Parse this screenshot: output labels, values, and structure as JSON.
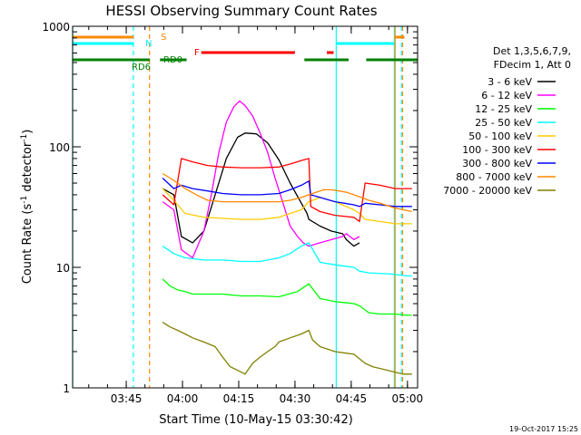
{
  "chart_data": {
    "type": "line",
    "title": "HESSI Observing Summary Count Rates",
    "xlabel": "Start Time (10-May-15 03:30:42)",
    "ylabel_main": "Count Rate (s",
    "ylabel_sup1": "-1",
    "ylabel_mid": " detector",
    "ylabel_sup2": "-1",
    "ylabel_end": ")",
    "yscale": "log",
    "ylim": [
      1,
      1000
    ],
    "xlim_minutes": [
      0,
      92
    ],
    "x_tick_labels": [
      {
        "t": 14.3,
        "label": "03:45"
      },
      {
        "t": 29.3,
        "label": "04:00"
      },
      {
        "t": 44.3,
        "label": "04:15"
      },
      {
        "t": 59.3,
        "label": "04:30"
      },
      {
        "t": 74.3,
        "label": "04:45"
      },
      {
        "t": 89.3,
        "label": "05:00"
      }
    ],
    "y_tick_labels": [
      {
        "v": 1,
        "label": "1"
      },
      {
        "v": 10,
        "label": "10"
      },
      {
        "v": 100,
        "label": "100"
      },
      {
        "v": 1000,
        "label": "1000"
      }
    ],
    "legend_header": [
      "Det 1,3,5,6,7,9,",
      "FDecim 1, Att 0"
    ],
    "series": [
      {
        "name": "3 - 6 keV",
        "color": "#000000",
        "x": [
          24,
          27,
          29,
          32,
          35,
          38,
          41,
          44,
          46,
          49,
          52,
          55,
          58,
          61,
          62.5,
          63,
          66,
          69,
          72,
          73,
          75,
          76.5
        ],
        "values": [
          45,
          40,
          18,
          16,
          20,
          40,
          80,
          120,
          130,
          128,
          108,
          78,
          50,
          34,
          28,
          25,
          22,
          20,
          19,
          17,
          15,
          16
        ]
      },
      {
        "name": "6 - 12 keV",
        "color": "#ff00ff",
        "x": [
          24,
          27,
          29,
          32,
          35,
          37,
          39,
          41,
          43,
          44.5,
          46,
          48,
          50,
          52,
          54,
          56,
          58,
          60,
          61.5,
          63,
          66,
          69,
          72,
          73,
          75,
          76.5
        ],
        "values": [
          35,
          30,
          14,
          12,
          20,
          40,
          90,
          160,
          215,
          240,
          220,
          180,
          130,
          90,
          55,
          35,
          22,
          18,
          16,
          15,
          16,
          17,
          18,
          19,
          17,
          18
        ]
      },
      {
        "name": "12 - 25 keV",
        "color": "#00ff00",
        "x": [
          24,
          26,
          28,
          30,
          32,
          35,
          40,
          45,
          50,
          55,
          60,
          63,
          66,
          70,
          75,
          76.5,
          79,
          82,
          86,
          89,
          90.5
        ],
        "values": [
          8,
          7,
          6.5,
          6.3,
          6,
          6,
          6,
          5.8,
          5.8,
          5.7,
          6.3,
          7.3,
          5.5,
          5.2,
          5,
          4.8,
          4.2,
          4.1,
          4.1,
          4,
          4
        ]
      },
      {
        "name": "25 - 50 keV",
        "color": "#00ffff",
        "x": [
          24,
          27,
          30,
          35,
          40,
          45,
          50,
          55,
          58,
          61,
          63,
          66,
          70,
          75,
          76.5,
          79,
          85,
          89,
          90.5
        ],
        "values": [
          15,
          13,
          12,
          11.5,
          11.5,
          11.2,
          11.2,
          12,
          13,
          15,
          16,
          11,
          10.5,
          10,
          9.3,
          9,
          8.8,
          8.5,
          8.5
        ]
      },
      {
        "name": "50 - 100 keV",
        "color": "#ffcc00",
        "x": [
          24,
          27,
          30,
          35,
          40,
          45,
          50,
          55,
          58,
          61,
          63,
          66,
          70,
          75,
          76.5,
          78,
          82,
          86,
          90.5
        ],
        "values": [
          45,
          36,
          28,
          26,
          25.5,
          25,
          25,
          26,
          28,
          30,
          35,
          38,
          35,
          30,
          28,
          25,
          24,
          23,
          23
        ]
      },
      {
        "name": "100 - 300 keV",
        "color": "#ff0000",
        "x": [
          24,
          27,
          29,
          32,
          36,
          40,
          45,
          50,
          55,
          58,
          61,
          63,
          63.5,
          66,
          70,
          75,
          76.5,
          78,
          82,
          86,
          90.5
        ],
        "values": [
          40,
          33,
          80,
          75,
          70,
          68,
          67,
          67,
          68,
          72,
          77,
          80,
          32,
          29,
          27,
          26,
          24,
          50,
          48,
          45,
          45
        ]
      },
      {
        "name": "300 - 800 keV",
        "color": "#0000ff",
        "x": [
          24,
          27,
          29,
          32,
          36,
          40,
          45,
          50,
          55,
          58,
          61,
          63,
          63.5,
          66,
          70,
          75,
          76.5,
          78,
          82,
          86,
          90.5
        ],
        "values": [
          55,
          45,
          48,
          45,
          43,
          41,
          40,
          40,
          41,
          44,
          48,
          52,
          40,
          38,
          35,
          33,
          32,
          34,
          33,
          32,
          32
        ]
      },
      {
        "name": "800 - 7000 keV",
        "color": "#ff8800",
        "x": [
          24,
          26,
          28,
          30,
          33,
          36,
          40,
          45,
          50,
          55,
          58,
          61,
          63,
          65,
          67,
          69,
          71,
          73,
          75,
          77,
          79,
          82,
          86,
          90.5
        ],
        "values": [
          60,
          55,
          50,
          45,
          40,
          36,
          35,
          35,
          35,
          35,
          36,
          38,
          40,
          42,
          44,
          44,
          43,
          42,
          40,
          38,
          36,
          34,
          31,
          29
        ]
      },
      {
        "name": "7000 - 20000 keV",
        "color": "#808000",
        "x": [
          24,
          26,
          28,
          30,
          32,
          35,
          38,
          40,
          42,
          44,
          46,
          48,
          50,
          52,
          54,
          55,
          58,
          61,
          63,
          64,
          66,
          70,
          75,
          78,
          80,
          84,
          88,
          90.5
        ],
        "values": [
          3.5,
          3.2,
          3,
          2.8,
          2.6,
          2.4,
          2.2,
          1.8,
          1.5,
          1.4,
          1.3,
          1.6,
          1.8,
          2,
          2.2,
          2.4,
          2.6,
          2.8,
          3,
          2.5,
          2.2,
          2,
          1.9,
          1.6,
          1.5,
          1.4,
          1.3,
          1.3
        ]
      }
    ],
    "state_bars": [
      {
        "label": "S",
        "color": "#ff8800",
        "segments": [
          [
            0,
            16.3
          ],
          [
            85.8,
            88.5
          ]
        ]
      },
      {
        "label": "N",
        "color": "#00ffff",
        "segments": [
          [
            0,
            16.3
          ],
          [
            70.3,
            85.8
          ]
        ]
      },
      {
        "label": "F",
        "color": "#ff0000",
        "segments": [
          [
            34.3,
            59.3
          ],
          [
            67.8,
            69.6
          ]
        ]
      },
      {
        "label": "RD0",
        "color": "#008000",
        "segments": [
          [
            0,
            20.6
          ],
          [
            23.3,
            30.4
          ],
          [
            61.8,
            73.6
          ],
          [
            78.3,
            92
          ]
        ]
      },
      {
        "label": "RD6",
        "color": "#008000",
        "segments": []
      }
    ],
    "vertical_markers": [
      {
        "t": 0,
        "color": "#00ffff",
        "style": "solid"
      },
      {
        "t": 16.2,
        "color": "#00ffff",
        "style": "dashed"
      },
      {
        "t": 20.5,
        "color": "#ff8800",
        "style": "dashed"
      },
      {
        "t": 70.3,
        "color": "#00ffff",
        "style": "solid"
      },
      {
        "t": 85.8,
        "color": "#00ffff",
        "style": "solid"
      },
      {
        "t": 86.0,
        "color": "#ff8800",
        "style": "solid"
      },
      {
        "t": 87.7,
        "color": "#00ffff",
        "style": "dashed"
      },
      {
        "t": 88.0,
        "color": "#ff8800",
        "style": "dashed"
      }
    ],
    "footer_date": "19-Oct-2017 15:25"
  }
}
